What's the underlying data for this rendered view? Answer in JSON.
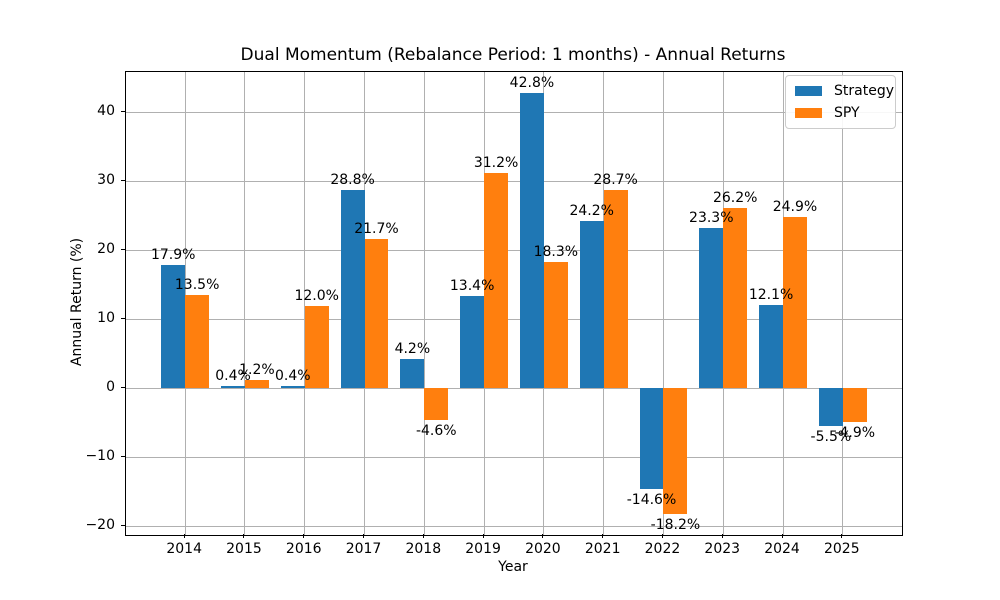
{
  "chart_data": {
    "type": "bar",
    "title": "Dual Momentum (Rebalance Period: 1 months) - Annual Returns",
    "xlabel": "Year",
    "ylabel": "Annual Return (%)",
    "categories": [
      "2014",
      "2015",
      "2016",
      "2017",
      "2018",
      "2019",
      "2020",
      "2021",
      "2022",
      "2023",
      "2024",
      "2025"
    ],
    "series": [
      {
        "name": "Strategy",
        "color": "#1f77b4",
        "values": [
          17.9,
          0.4,
          0.4,
          28.8,
          4.2,
          13.4,
          42.8,
          24.2,
          -14.6,
          23.3,
          12.1,
          -5.5
        ],
        "labels": [
          "17.9%",
          "0.4%",
          "0.4%",
          "28.8%",
          "4.2%",
          "13.4%",
          "42.8%",
          "24.2%",
          "-14.6%",
          "23.3%",
          "12.1%",
          "-5.5%"
        ]
      },
      {
        "name": "SPY",
        "color": "#ff7f0e",
        "values": [
          13.5,
          1.2,
          12.0,
          21.7,
          -4.6,
          31.2,
          18.3,
          28.7,
          -18.2,
          26.2,
          24.9,
          -4.9
        ],
        "labels": [
          "13.5%",
          "1.2%",
          "12.0%",
          "21.7%",
          "-4.6%",
          "31.2%",
          "18.3%",
          "28.7%",
          "-18.2%",
          "26.2%",
          "24.9%",
          "-4.9%"
        ]
      }
    ],
    "yticks": [
      -20,
      -10,
      0,
      10,
      20,
      30,
      40
    ],
    "ytick_labels": [
      "−20",
      "−10",
      "0",
      "10",
      "20",
      "30",
      "40"
    ],
    "ylim": [
      -21.25,
      45.85
    ],
    "xlim": [
      -0.99,
      11.99
    ],
    "bar_width": 0.4,
    "group_offset": 0.2,
    "grid": true,
    "grid_color": "#b0b0b0",
    "legend_position": "upper right"
  }
}
